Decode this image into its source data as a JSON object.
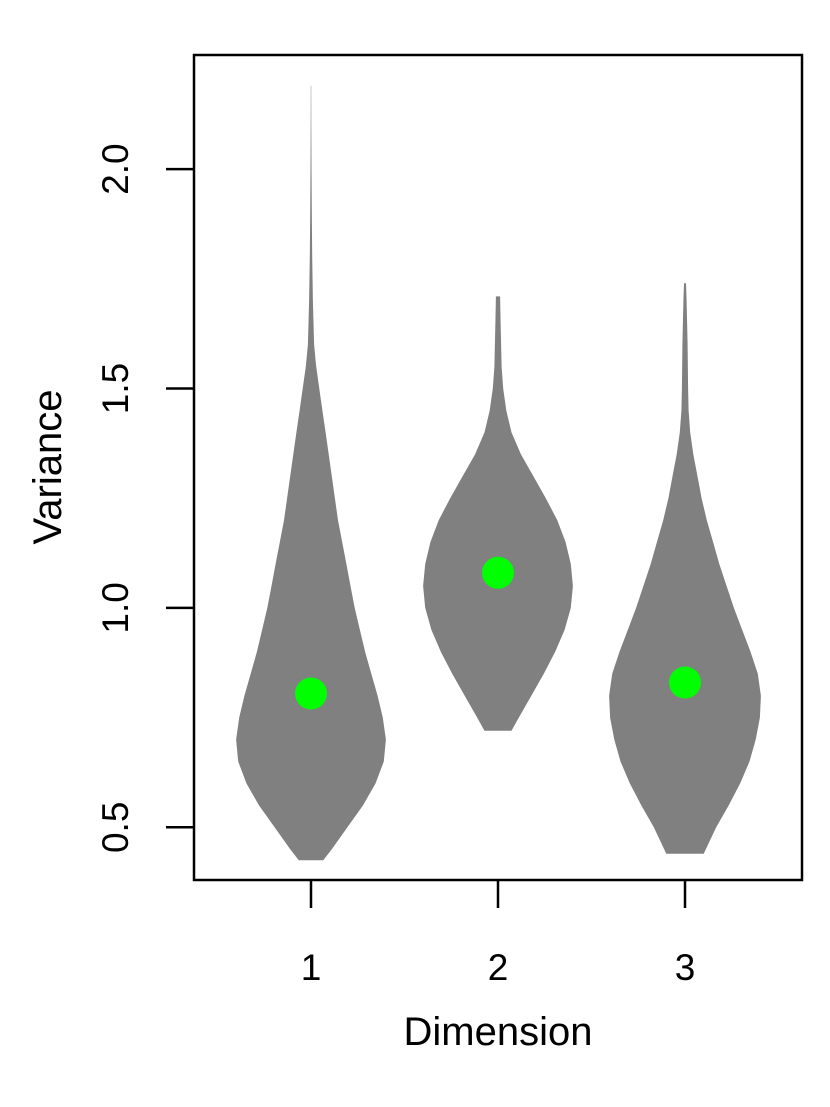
{
  "chart_data": {
    "type": "violin",
    "title": "",
    "xlabel": "Dimension",
    "ylabel": "Variance",
    "categories": [
      "1",
      "2",
      "3"
    ],
    "x_ticks": [
      "1",
      "2",
      "3"
    ],
    "y_ticks": [
      "0.5",
      "1.0",
      "1.5",
      "2.0"
    ],
    "ylim": [
      0.38,
      2.26
    ],
    "grid": false,
    "colors": {
      "violin_fill": "#808080",
      "median_point": "#00ff00",
      "axis": "#000000"
    },
    "series": [
      {
        "category": "1",
        "median": 0.805,
        "min": 0.425,
        "max": 2.19,
        "density": [
          [
            0.425,
            0.117
          ],
          [
            0.45,
            0.2
          ],
          [
            0.5,
            0.35
          ],
          [
            0.55,
            0.5
          ],
          [
            0.6,
            0.62
          ],
          [
            0.65,
            0.7
          ],
          [
            0.7,
            0.72
          ],
          [
            0.75,
            0.69
          ],
          [
            0.8,
            0.64
          ],
          [
            0.85,
            0.58
          ],
          [
            0.9,
            0.52
          ],
          [
            0.95,
            0.47
          ],
          [
            1.0,
            0.42
          ],
          [
            1.05,
            0.38
          ],
          [
            1.1,
            0.34
          ],
          [
            1.15,
            0.3
          ],
          [
            1.2,
            0.26
          ],
          [
            1.25,
            0.23
          ],
          [
            1.3,
            0.2
          ],
          [
            1.35,
            0.17
          ],
          [
            1.4,
            0.14
          ],
          [
            1.45,
            0.11
          ],
          [
            1.5,
            0.08
          ],
          [
            1.55,
            0.05
          ],
          [
            1.6,
            0.03
          ],
          [
            1.7,
            0.018
          ],
          [
            1.8,
            0.012
          ],
          [
            1.9,
            0.008
          ],
          [
            2.0,
            0.005
          ],
          [
            2.1,
            0.003
          ],
          [
            2.19,
            0.002
          ]
        ]
      },
      {
        "category": "2",
        "median": 1.08,
        "min": 0.72,
        "max": 1.71,
        "density": [
          [
            0.72,
            0.13
          ],
          [
            0.75,
            0.2
          ],
          [
            0.8,
            0.32
          ],
          [
            0.85,
            0.44
          ],
          [
            0.9,
            0.55
          ],
          [
            0.95,
            0.64
          ],
          [
            1.0,
            0.7
          ],
          [
            1.05,
            0.72
          ],
          [
            1.1,
            0.7
          ],
          [
            1.15,
            0.65
          ],
          [
            1.2,
            0.57
          ],
          [
            1.25,
            0.46
          ],
          [
            1.3,
            0.34
          ],
          [
            1.35,
            0.22
          ],
          [
            1.4,
            0.13
          ],
          [
            1.45,
            0.08
          ],
          [
            1.5,
            0.05
          ],
          [
            1.55,
            0.035
          ],
          [
            1.6,
            0.03
          ],
          [
            1.65,
            0.025
          ],
          [
            1.71,
            0.02
          ]
        ]
      },
      {
        "category": "3",
        "median": 0.83,
        "min": 0.44,
        "max": 1.74,
        "density": [
          [
            0.44,
            0.18
          ],
          [
            0.5,
            0.3
          ],
          [
            0.55,
            0.42
          ],
          [
            0.6,
            0.53
          ],
          [
            0.65,
            0.62
          ],
          [
            0.7,
            0.68
          ],
          [
            0.75,
            0.72
          ],
          [
            0.8,
            0.73
          ],
          [
            0.85,
            0.7
          ],
          [
            0.9,
            0.63
          ],
          [
            0.95,
            0.55
          ],
          [
            1.0,
            0.47
          ],
          [
            1.05,
            0.4
          ],
          [
            1.1,
            0.33
          ],
          [
            1.15,
            0.27
          ],
          [
            1.2,
            0.21
          ],
          [
            1.25,
            0.16
          ],
          [
            1.3,
            0.12
          ],
          [
            1.35,
            0.08
          ],
          [
            1.4,
            0.05
          ],
          [
            1.45,
            0.035
          ],
          [
            1.5,
            0.03
          ],
          [
            1.6,
            0.025
          ],
          [
            1.7,
            0.015
          ],
          [
            1.74,
            0.01
          ]
        ]
      }
    ]
  }
}
